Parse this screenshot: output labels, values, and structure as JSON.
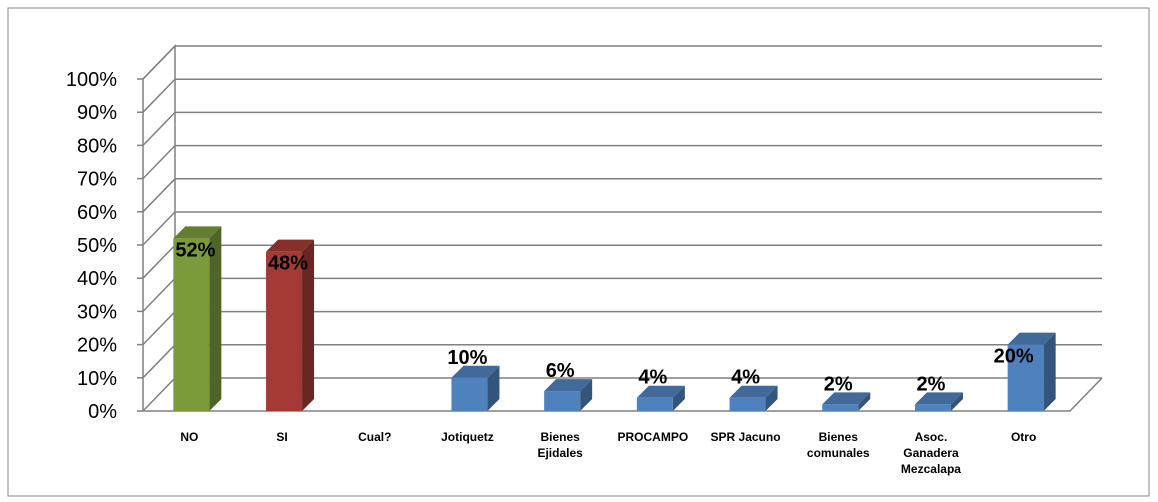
{
  "chart_data": {
    "type": "bar",
    "style": "3d-column",
    "categories": [
      "NO",
      "SI",
      "Cual?",
      "Jotiquetz",
      "Bienes Ejidales",
      "PROCAMPO",
      "SPR Jacuno",
      "Bienes comunales",
      "Asoc. Ganadera Mezcalapa",
      "Otro"
    ],
    "category_lines": [
      [
        "NO"
      ],
      [
        "SI"
      ],
      [
        "Cual?"
      ],
      [
        "Jotiquetz"
      ],
      [
        "Bienes",
        "Ejidales"
      ],
      [
        "PROCAMPO"
      ],
      [
        "SPR Jacuno"
      ],
      [
        "Bienes",
        "comunales"
      ],
      [
        "Asoc.",
        "Ganadera",
        "Mezcalapa"
      ],
      [
        "Otro"
      ]
    ],
    "values": [
      52,
      48,
      null,
      10,
      6,
      4,
      4,
      2,
      2,
      20
    ],
    "value_labels": [
      "52%",
      "48%",
      "",
      "10%",
      "6%",
      "4%",
      "4%",
      "2%",
      "2%",
      "20%"
    ],
    "ylim": [
      0,
      100
    ],
    "yticks": [
      "0%",
      "10%",
      "20%",
      "30%",
      "40%",
      "50%",
      "60%",
      "70%",
      "80%",
      "90%",
      "100%"
    ],
    "grid": true,
    "legend": "none",
    "colors": {
      "NO": "#7A9A3C",
      "SI": "#A33A36",
      "default": "#4F81BD"
    }
  }
}
